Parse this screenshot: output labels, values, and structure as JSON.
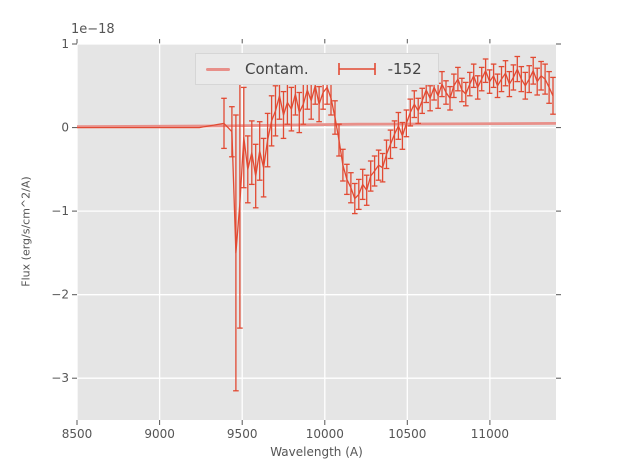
{
  "figure": {
    "offset_label": "1e−18",
    "xlabel": "Wavelength (A)",
    "ylabel": "Flux (erg/s/cm^2/A)"
  },
  "legend": {
    "items": [
      {
        "label": "Contam.",
        "sample": "line"
      },
      {
        "label": "-152",
        "sample": "errorbar"
      }
    ]
  },
  "colors": {
    "figure_bg": "#ffffff",
    "plot_bg": "#e5e5e5",
    "grid": "#ffffff",
    "tick": "#555555",
    "text": "#555555",
    "contam": "#e8908a",
    "spectrum": "#e24a33",
    "legend_bg": "#eaeaea",
    "legend_border": "#d6d6d6"
  },
  "chart_data": {
    "type": "line",
    "title": "",
    "xlabel": "Wavelength (A)",
    "ylabel": "Flux (erg/s/cm^2/A)",
    "y_offset_text": "1e−18",
    "y_unit_factor": 1e-18,
    "xlim": [
      8500,
      11400
    ],
    "ylim": [
      -3.5,
      1.0
    ],
    "xticks": [
      8500,
      9000,
      9500,
      10000,
      10500,
      11000
    ],
    "xtick_labels": [
      "8500",
      "9000",
      "9500",
      "10000",
      "10500",
      "11000"
    ],
    "yticks": [
      1,
      0,
      -1,
      -2,
      -3
    ],
    "ytick_labels": [
      "1",
      "0",
      "−1",
      "−2",
      "−3"
    ],
    "grid": true,
    "legend_position": "upper center",
    "series": [
      {
        "name": "Contam.",
        "style": "line",
        "color_key": "contam",
        "linewidth": 2.8,
        "x": [
          8500,
          9400,
          10200,
          11400
        ],
        "y": [
          0.01,
          0.02,
          0.04,
          0.05
        ]
      },
      {
        "name": "-152",
        "style": "errorbar",
        "color_key": "spectrum",
        "linewidth": 1.3,
        "points_format": [
          "wavelength_A",
          "flux_1e-18",
          "err_1e-18"
        ],
        "points": [
          [
            8500,
            0.0,
            0
          ],
          [
            9240,
            0.0,
            0
          ],
          [
            9390,
            0.05,
            0.3
          ],
          [
            9414,
            0.0,
            0
          ],
          [
            9438,
            -0.05,
            0.3
          ],
          [
            9462,
            -1.5,
            1.65
          ],
          [
            9486,
            -0.9,
            1.5
          ],
          [
            9510,
            -0.12,
            0.6
          ],
          [
            9534,
            -0.5,
            0.4
          ],
          [
            9558,
            -0.3,
            0.38
          ],
          [
            9582,
            -0.58,
            0.38
          ],
          [
            9606,
            -0.28,
            0.35
          ],
          [
            9630,
            -0.48,
            0.35
          ],
          [
            9654,
            -0.15,
            0.32
          ],
          [
            9678,
            0.08,
            0.3
          ],
          [
            9702,
            0.2,
            0.3
          ],
          [
            9726,
            0.38,
            0.28
          ],
          [
            9750,
            0.15,
            0.28
          ],
          [
            9774,
            0.3,
            0.26
          ],
          [
            9798,
            0.22,
            0.26
          ],
          [
            9822,
            0.4,
            0.25
          ],
          [
            9846,
            0.18,
            0.24
          ],
          [
            9870,
            0.28,
            0.24
          ],
          [
            9894,
            0.45,
            0.23
          ],
          [
            9918,
            0.32,
            0.22
          ],
          [
            9942,
            0.5,
            0.22
          ],
          [
            9966,
            0.28,
            0.21
          ],
          [
            9990,
            0.42,
            0.2
          ],
          [
            10014,
            0.48,
            0.2
          ],
          [
            10038,
            0.35,
            0.2
          ],
          [
            10062,
            0.12,
            0.2
          ],
          [
            10086,
            -0.15,
            0.19
          ],
          [
            10110,
            -0.45,
            0.19
          ],
          [
            10134,
            -0.62,
            0.18
          ],
          [
            10158,
            -0.72,
            0.18
          ],
          [
            10182,
            -0.85,
            0.18
          ],
          [
            10206,
            -0.8,
            0.18
          ],
          [
            10230,
            -0.68,
            0.18
          ],
          [
            10254,
            -0.75,
            0.18
          ],
          [
            10278,
            -0.58,
            0.18
          ],
          [
            10302,
            -0.52,
            0.18
          ],
          [
            10326,
            -0.45,
            0.18
          ],
          [
            10350,
            -0.48,
            0.17
          ],
          [
            10374,
            -0.32,
            0.17
          ],
          [
            10398,
            -0.2,
            0.17
          ],
          [
            10422,
            -0.08,
            0.16
          ],
          [
            10446,
            0.02,
            0.16
          ],
          [
            10470,
            -0.1,
            0.16
          ],
          [
            10494,
            0.05,
            0.16
          ],
          [
            10518,
            0.18,
            0.16
          ],
          [
            10542,
            0.28,
            0.16
          ],
          [
            10566,
            0.2,
            0.15
          ],
          [
            10590,
            0.32,
            0.15
          ],
          [
            10614,
            0.45,
            0.15
          ],
          [
            10638,
            0.35,
            0.15
          ],
          [
            10662,
            0.48,
            0.15
          ],
          [
            10686,
            0.38,
            0.15
          ],
          [
            10710,
            0.52,
            0.15
          ],
          [
            10734,
            0.42,
            0.14
          ],
          [
            10758,
            0.35,
            0.14
          ],
          [
            10782,
            0.5,
            0.14
          ],
          [
            10806,
            0.58,
            0.14
          ],
          [
            10830,
            0.45,
            0.14
          ],
          [
            10854,
            0.4,
            0.14
          ],
          [
            10878,
            0.52,
            0.14
          ],
          [
            10902,
            0.62,
            0.14
          ],
          [
            10926,
            0.48,
            0.14
          ],
          [
            10950,
            0.58,
            0.14
          ],
          [
            10974,
            0.68,
            0.14
          ],
          [
            10998,
            0.55,
            0.14
          ],
          [
            11022,
            0.62,
            0.14
          ],
          [
            11046,
            0.5,
            0.14
          ],
          [
            11070,
            0.58,
            0.15
          ],
          [
            11094,
            0.65,
            0.15
          ],
          [
            11118,
            0.52,
            0.15
          ],
          [
            11142,
            0.6,
            0.15
          ],
          [
            11166,
            0.7,
            0.15
          ],
          [
            11190,
            0.58,
            0.15
          ],
          [
            11214,
            0.5,
            0.16
          ],
          [
            11238,
            0.58,
            0.16
          ],
          [
            11262,
            0.68,
            0.16
          ],
          [
            11286,
            0.55,
            0.16
          ],
          [
            11310,
            0.62,
            0.17
          ],
          [
            11334,
            0.58,
            0.18
          ],
          [
            11358,
            0.48,
            0.19
          ],
          [
            11382,
            0.38,
            0.22
          ]
        ]
      }
    ]
  }
}
